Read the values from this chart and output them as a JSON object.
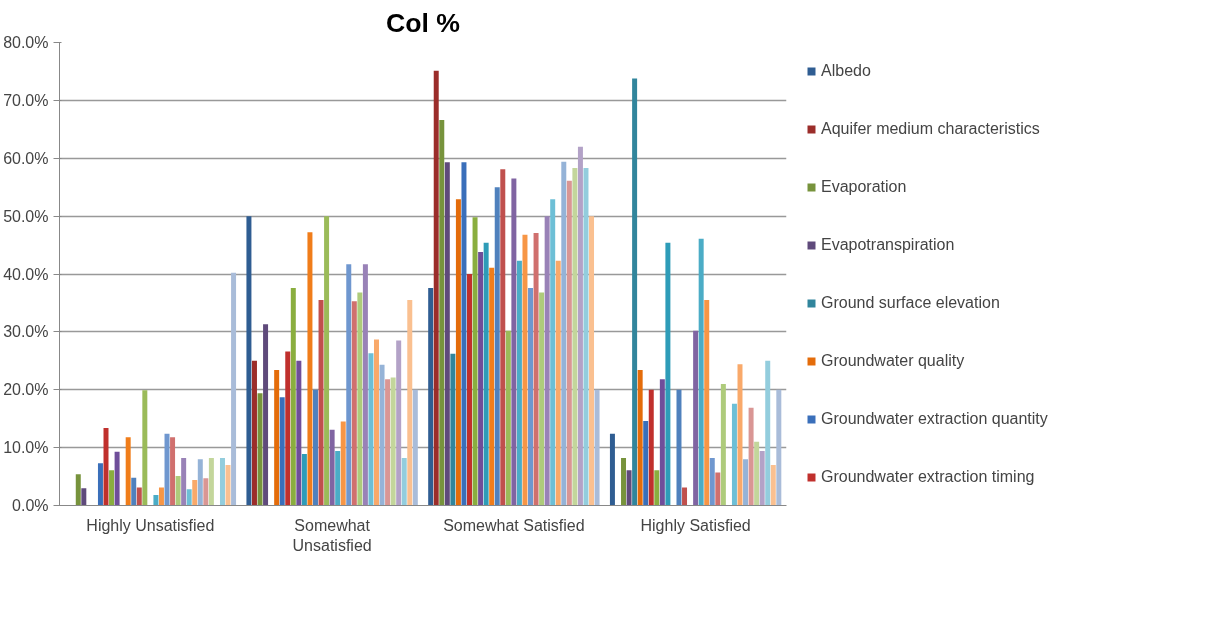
{
  "chart_data": {
    "type": "bar",
    "title": "Col %",
    "categories": [
      "Highly Unsatisfied",
      "Somewhat Unsatisfied",
      "Somewhat Satisfied",
      "Highly Satisfied"
    ],
    "ylim": [
      0,
      80
    ],
    "yticks": [
      {
        "value": 0,
        "label": "0.0%"
      },
      {
        "value": 10,
        "label": "10.0%"
      },
      {
        "value": 20,
        "label": "20.0%"
      },
      {
        "value": 30,
        "label": "30.0%"
      },
      {
        "value": 40,
        "label": "40.0%"
      },
      {
        "value": 50,
        "label": "50.0%"
      },
      {
        "value": 60,
        "label": "60.0%"
      },
      {
        "value": 70,
        "label": "70.0%"
      },
      {
        "value": 80,
        "label": "80.0%"
      }
    ],
    "grid": "y",
    "legend": "right",
    "series": [
      {
        "name": "Albedo",
        "color": "#2f5d92",
        "values": [
          0,
          50,
          37.6,
          12.4
        ]
      },
      {
        "name": "Aquifer medium characteristics",
        "color": "#9b2d2a",
        "values": [
          0,
          25,
          75.1,
          0
        ]
      },
      {
        "name": "Evaporation",
        "color": "#77933c",
        "values": [
          5.4,
          19.4,
          66.6,
          8.2
        ]
      },
      {
        "name": "Evapotranspiration",
        "color": "#5f4a7b",
        "values": [
          3,
          31.3,
          59.3,
          6.1
        ]
      },
      {
        "name": "Ground surface elevation",
        "color": "#31859c",
        "values": [
          0,
          0,
          26.2,
          73.8
        ]
      },
      {
        "name": "Groundwater quality",
        "color": "#e46c0a",
        "values": [
          0,
          23.4,
          52.9,
          23.4
        ]
      },
      {
        "name": "Groundwater extraction quantity",
        "color": "#3a6fba",
        "values": [
          7.3,
          18.7,
          59.3,
          14.6
        ]
      },
      {
        "name": "Groundwater extraction timing",
        "color": "#c0302d",
        "values": [
          13.4,
          26.6,
          40,
          20
        ]
      },
      {
        "color": "#8aae3f",
        "values": [
          6.1,
          37.6,
          49.8,
          6.1
        ]
      },
      {
        "color": "#6f4e9a",
        "values": [
          9.3,
          25,
          43.8,
          21.8
        ]
      },
      {
        "color": "#2e9cb8",
        "values": [
          0,
          8.9,
          45.4,
          45.4
        ]
      },
      {
        "color": "#f07d1a",
        "values": [
          11.8,
          47.2,
          41.1,
          0
        ]
      },
      {
        "color": "#4f81bd",
        "values": [
          4.8,
          20,
          55,
          20
        ]
      },
      {
        "color": "#c0504d",
        "values": [
          3.1,
          35.5,
          58.1,
          3.1
        ]
      },
      {
        "color": "#9bbb59",
        "values": [
          19.9,
          50,
          30.2,
          0
        ]
      },
      {
        "color": "#8064a2",
        "values": [
          0,
          13.1,
          56.5,
          30.2
        ]
      },
      {
        "color": "#4bacc6",
        "values": [
          1.8,
          9.4,
          42.3,
          46.1
        ]
      },
      {
        "color": "#f79646",
        "values": [
          3.1,
          14.5,
          46.8,
          35.5
        ]
      },
      {
        "color": "#6f97cf",
        "values": [
          12.4,
          41.7,
          37.6,
          8.2
        ]
      },
      {
        "color": "#d0706e",
        "values": [
          11.8,
          35.3,
          47.1,
          5.7
        ]
      },
      {
        "color": "#aecb7b",
        "values": [
          5.1,
          36.8,
          36.8,
          21
        ]
      },
      {
        "color": "#9982b7",
        "values": [
          8.2,
          41.7,
          50,
          0
        ]
      },
      {
        "color": "#6dbfd6",
        "values": [
          2.8,
          26.3,
          52.9,
          17.6
        ]
      },
      {
        "color": "#f9a96a",
        "values": [
          4.4,
          28.7,
          42.3,
          24.4
        ]
      },
      {
        "color": "#95b3d7",
        "values": [
          8,
          24.3,
          59.4,
          8
        ]
      },
      {
        "color": "#d99694",
        "values": [
          4.7,
          21.8,
          56.1,
          16.9
        ]
      },
      {
        "color": "#c3d69b",
        "values": [
          8.2,
          22.1,
          58.3,
          11
        ]
      },
      {
        "color": "#b3a2c7",
        "values": [
          0,
          28.5,
          62,
          9.4
        ]
      },
      {
        "color": "#93cddd",
        "values": [
          8.2,
          8.2,
          58.3,
          25
        ]
      },
      {
        "color": "#fac090",
        "values": [
          7,
          35.5,
          50,
          7
        ]
      },
      {
        "color": "#a9bcd9",
        "values": [
          40.2,
          20,
          20,
          20
        ]
      }
    ]
  }
}
